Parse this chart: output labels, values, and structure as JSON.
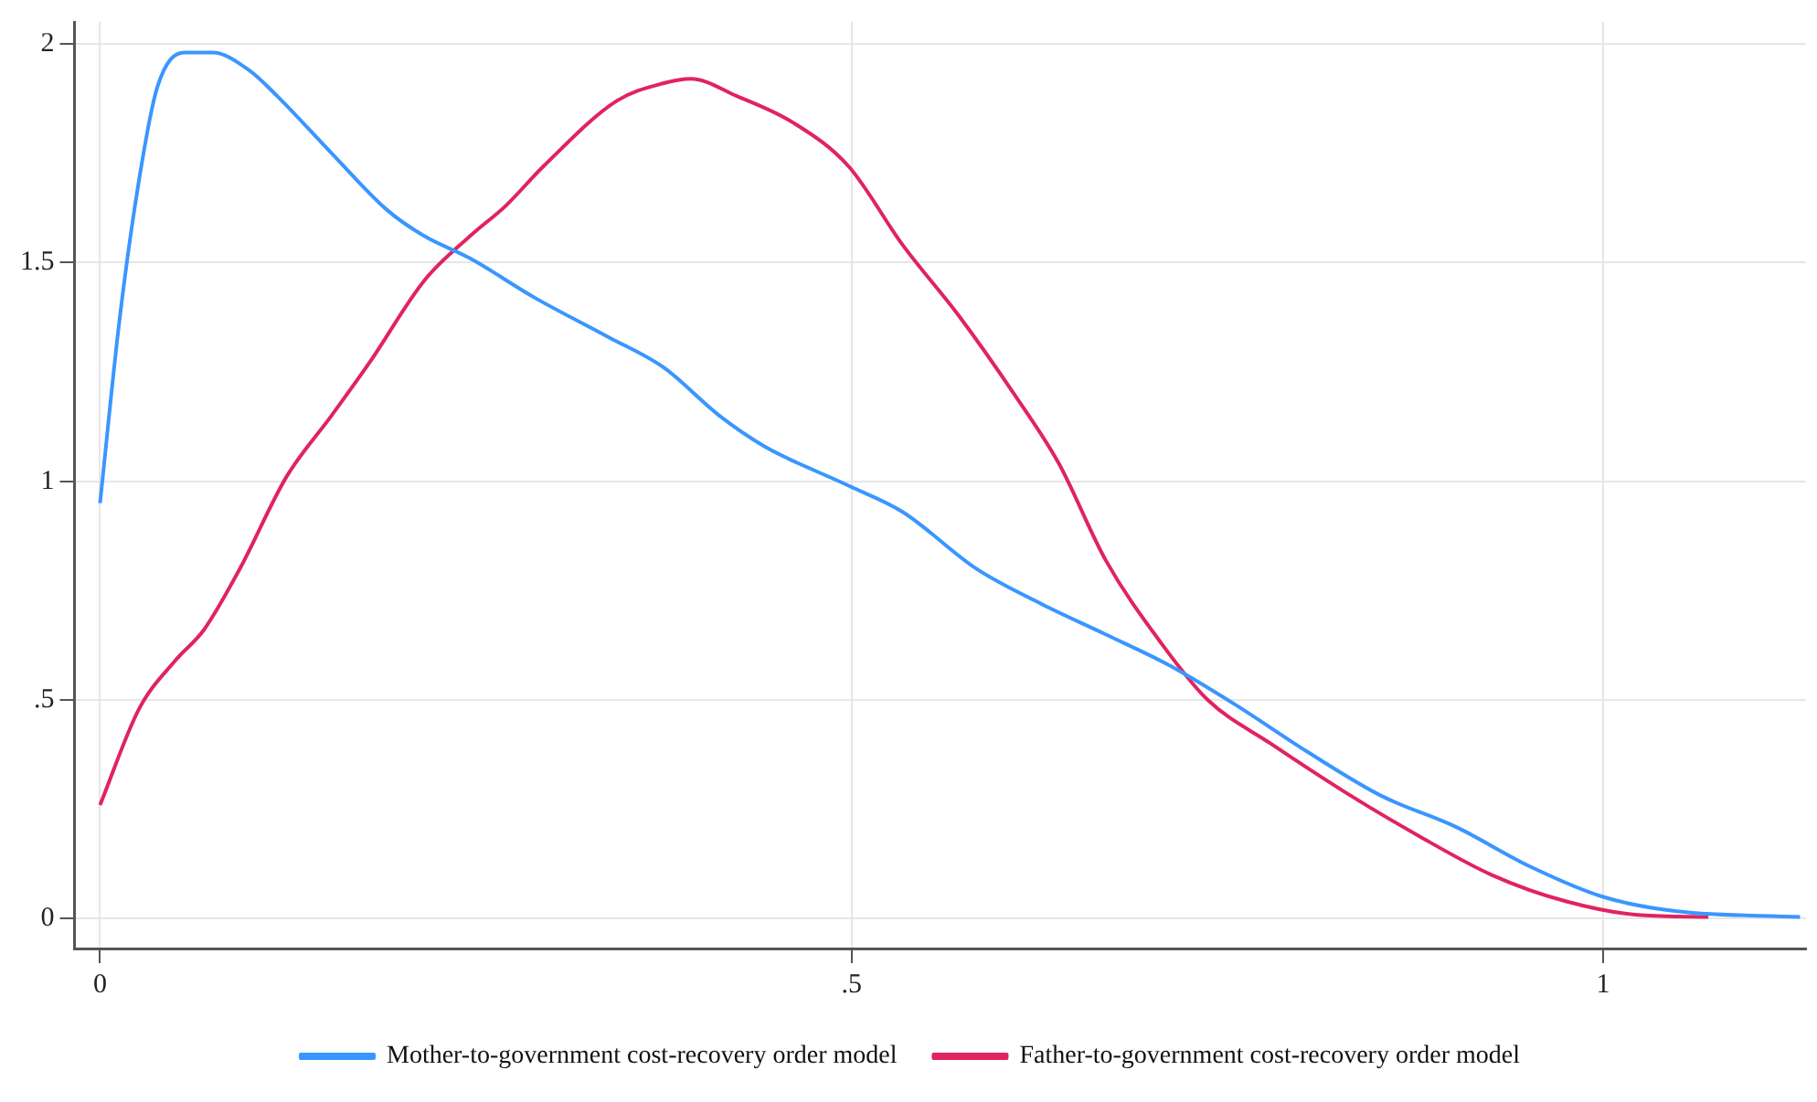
{
  "chart_data": {
    "type": "line",
    "xlim": [
      -0.017,
      1.135
    ],
    "ylim": [
      -0.068,
      2.05
    ],
    "xticks": [
      0,
      {
        "value": 0.5,
        "label": ".5"
      },
      1
    ],
    "yticks": [
      0,
      {
        "value": 0.5,
        "label": ".5"
      },
      1,
      {
        "value": 1.5,
        "label": "1.5"
      },
      2
    ],
    "grid": true,
    "legend": "bottom",
    "marker": "none",
    "line_style": "solid",
    "series": [
      {
        "name": "Mother-to-government cost-recovery order model",
        "color": "#3a96ff",
        "x": [
          0,
          0.013,
          0.026,
          0.038,
          0.056,
          0.075,
          0.099,
          0.118,
          0.154,
          0.191,
          0.216,
          0.246,
          0.289,
          0.338,
          0.375,
          0.412,
          0.442,
          0.498,
          0.534,
          0.583,
          0.626,
          0.669,
          0.711,
          0.755,
          0.804,
          0.853,
          0.902,
          0.951,
          1.0,
          1.049,
          1.131
        ],
        "values": [
          0.95,
          1.37,
          1.69,
          1.9,
          1.98,
          1.98,
          1.94,
          1.88,
          1.75,
          1.62,
          1.56,
          1.51,
          1.42,
          1.33,
          1.26,
          1.15,
          1.08,
          0.99,
          0.93,
          0.8,
          0.72,
          0.65,
          0.58,
          0.49,
          0.38,
          0.28,
          0.21,
          0.12,
          0.05,
          0.017,
          0.004
        ]
      },
      {
        "name": "Father-to-government cost-recovery order model",
        "color": "#e0245e",
        "x": [
          0,
          0.026,
          0.05,
          0.069,
          0.093,
          0.124,
          0.154,
          0.179,
          0.216,
          0.246,
          0.27,
          0.295,
          0.344,
          0.375,
          0.393,
          0.424,
          0.461,
          0.498,
          0.534,
          0.571,
          0.608,
          0.638,
          0.669,
          0.706,
          0.737,
          0.779,
          0.828,
          0.877,
          0.926,
          0.975,
          1.025,
          1.07
        ],
        "values": [
          0.26,
          0.48,
          0.59,
          0.66,
          0.8,
          1.01,
          1.15,
          1.27,
          1.46,
          1.56,
          1.63,
          1.72,
          1.87,
          1.91,
          1.92,
          1.88,
          1.82,
          1.72,
          1.54,
          1.38,
          1.2,
          1.04,
          0.82,
          0.63,
          0.5,
          0.4,
          0.29,
          0.19,
          0.1,
          0.04,
          0.008,
          0.004
        ]
      }
    ]
  }
}
